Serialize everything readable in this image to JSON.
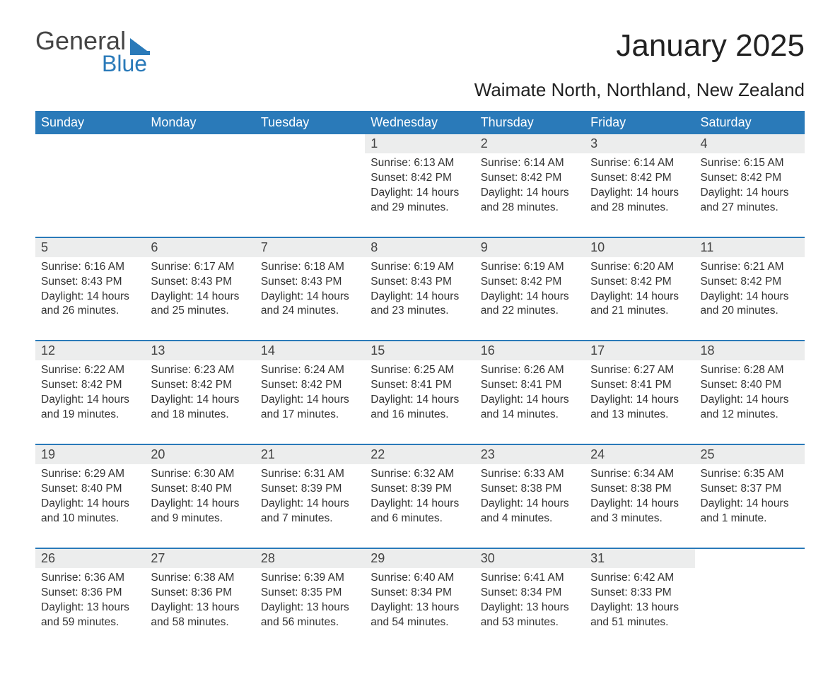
{
  "logo": {
    "text1": "General",
    "text2": "Blue"
  },
  "title": "January 2025",
  "subtitle": "Waimate North, Northland, New Zealand",
  "colors": {
    "header_bg": "#2a7ab9",
    "header_text": "#ffffff",
    "daynum_bg": "#eceded",
    "border": "#2a7ab9",
    "body_text": "#333333",
    "page_bg": "#ffffff"
  },
  "weekdays": [
    "Sunday",
    "Monday",
    "Tuesday",
    "Wednesday",
    "Thursday",
    "Friday",
    "Saturday"
  ],
  "weeks": [
    [
      null,
      null,
      null,
      {
        "n": "1",
        "sunrise": "6:13 AM",
        "sunset": "8:42 PM",
        "daylight": "14 hours and 29 minutes."
      },
      {
        "n": "2",
        "sunrise": "6:14 AM",
        "sunset": "8:42 PM",
        "daylight": "14 hours and 28 minutes."
      },
      {
        "n": "3",
        "sunrise": "6:14 AM",
        "sunset": "8:42 PM",
        "daylight": "14 hours and 28 minutes."
      },
      {
        "n": "4",
        "sunrise": "6:15 AM",
        "sunset": "8:42 PM",
        "daylight": "14 hours and 27 minutes."
      }
    ],
    [
      {
        "n": "5",
        "sunrise": "6:16 AM",
        "sunset": "8:43 PM",
        "daylight": "14 hours and 26 minutes."
      },
      {
        "n": "6",
        "sunrise": "6:17 AM",
        "sunset": "8:43 PM",
        "daylight": "14 hours and 25 minutes."
      },
      {
        "n": "7",
        "sunrise": "6:18 AM",
        "sunset": "8:43 PM",
        "daylight": "14 hours and 24 minutes."
      },
      {
        "n": "8",
        "sunrise": "6:19 AM",
        "sunset": "8:43 PM",
        "daylight": "14 hours and 23 minutes."
      },
      {
        "n": "9",
        "sunrise": "6:19 AM",
        "sunset": "8:42 PM",
        "daylight": "14 hours and 22 minutes."
      },
      {
        "n": "10",
        "sunrise": "6:20 AM",
        "sunset": "8:42 PM",
        "daylight": "14 hours and 21 minutes."
      },
      {
        "n": "11",
        "sunrise": "6:21 AM",
        "sunset": "8:42 PM",
        "daylight": "14 hours and 20 minutes."
      }
    ],
    [
      {
        "n": "12",
        "sunrise": "6:22 AM",
        "sunset": "8:42 PM",
        "daylight": "14 hours and 19 minutes."
      },
      {
        "n": "13",
        "sunrise": "6:23 AM",
        "sunset": "8:42 PM",
        "daylight": "14 hours and 18 minutes."
      },
      {
        "n": "14",
        "sunrise": "6:24 AM",
        "sunset": "8:42 PM",
        "daylight": "14 hours and 17 minutes."
      },
      {
        "n": "15",
        "sunrise": "6:25 AM",
        "sunset": "8:41 PM",
        "daylight": "14 hours and 16 minutes."
      },
      {
        "n": "16",
        "sunrise": "6:26 AM",
        "sunset": "8:41 PM",
        "daylight": "14 hours and 14 minutes."
      },
      {
        "n": "17",
        "sunrise": "6:27 AM",
        "sunset": "8:41 PM",
        "daylight": "14 hours and 13 minutes."
      },
      {
        "n": "18",
        "sunrise": "6:28 AM",
        "sunset": "8:40 PM",
        "daylight": "14 hours and 12 minutes."
      }
    ],
    [
      {
        "n": "19",
        "sunrise": "6:29 AM",
        "sunset": "8:40 PM",
        "daylight": "14 hours and 10 minutes."
      },
      {
        "n": "20",
        "sunrise": "6:30 AM",
        "sunset": "8:40 PM",
        "daylight": "14 hours and 9 minutes."
      },
      {
        "n": "21",
        "sunrise": "6:31 AM",
        "sunset": "8:39 PM",
        "daylight": "14 hours and 7 minutes."
      },
      {
        "n": "22",
        "sunrise": "6:32 AM",
        "sunset": "8:39 PM",
        "daylight": "14 hours and 6 minutes."
      },
      {
        "n": "23",
        "sunrise": "6:33 AM",
        "sunset": "8:38 PM",
        "daylight": "14 hours and 4 minutes."
      },
      {
        "n": "24",
        "sunrise": "6:34 AM",
        "sunset": "8:38 PM",
        "daylight": "14 hours and 3 minutes."
      },
      {
        "n": "25",
        "sunrise": "6:35 AM",
        "sunset": "8:37 PM",
        "daylight": "14 hours and 1 minute."
      }
    ],
    [
      {
        "n": "26",
        "sunrise": "6:36 AM",
        "sunset": "8:36 PM",
        "daylight": "13 hours and 59 minutes."
      },
      {
        "n": "27",
        "sunrise": "6:38 AM",
        "sunset": "8:36 PM",
        "daylight": "13 hours and 58 minutes."
      },
      {
        "n": "28",
        "sunrise": "6:39 AM",
        "sunset": "8:35 PM",
        "daylight": "13 hours and 56 minutes."
      },
      {
        "n": "29",
        "sunrise": "6:40 AM",
        "sunset": "8:34 PM",
        "daylight": "13 hours and 54 minutes."
      },
      {
        "n": "30",
        "sunrise": "6:41 AM",
        "sunset": "8:34 PM",
        "daylight": "13 hours and 53 minutes."
      },
      {
        "n": "31",
        "sunrise": "6:42 AM",
        "sunset": "8:33 PM",
        "daylight": "13 hours and 51 minutes."
      },
      null
    ]
  ],
  "labels": {
    "sunrise": "Sunrise: ",
    "sunset": "Sunset: ",
    "daylight": "Daylight: "
  }
}
